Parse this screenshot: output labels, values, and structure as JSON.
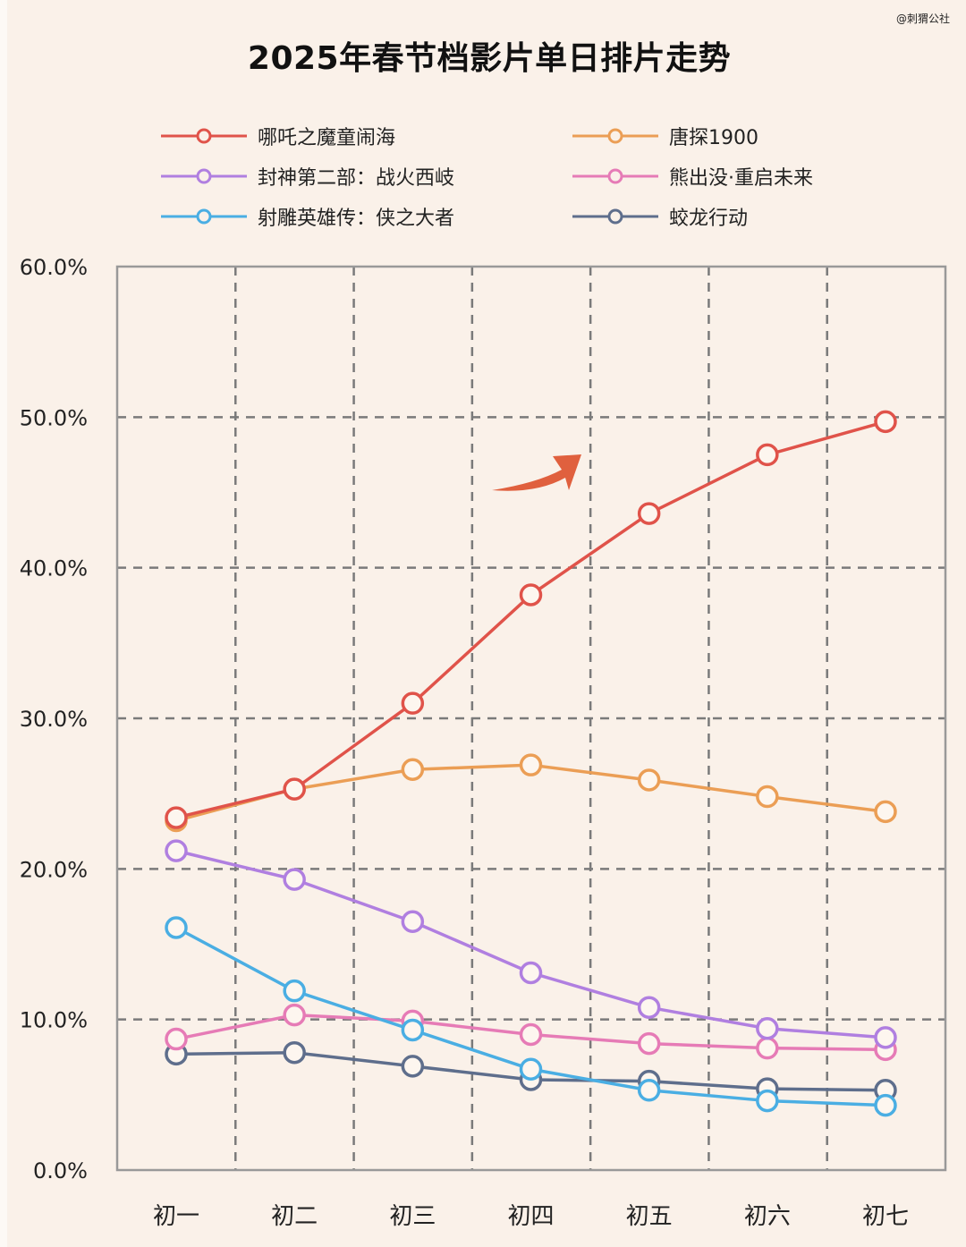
{
  "watermark": "@刺猬公社",
  "chart_data": {
    "type": "line",
    "title": "2025年春节档影片单日排片走势",
    "xlabel": "",
    "ylabel": "",
    "categories": [
      "初一",
      "初二",
      "初三",
      "初四",
      "初五",
      "初六",
      "初七"
    ],
    "ylim": [
      0,
      60
    ],
    "yticks": [
      "0.0%",
      "10.0%",
      "20.0%",
      "30.0%",
      "40.0%",
      "50.0%",
      "60.0%"
    ],
    "grid": true,
    "legend_position": "top",
    "series": [
      {
        "name": "哪吒之魔童闹海",
        "color": "#e0534a",
        "values": [
          23.4,
          25.3,
          31.0,
          38.2,
          43.6,
          47.5,
          49.7
        ]
      },
      {
        "name": "唐探1900",
        "color": "#eb9e55",
        "values": [
          23.2,
          25.3,
          26.6,
          26.9,
          25.9,
          24.8,
          23.8
        ]
      },
      {
        "name": "封神第二部：战火西岐",
        "color": "#b07fe0",
        "values": [
          21.2,
          19.3,
          16.5,
          13.1,
          10.8,
          9.4,
          8.8
        ]
      },
      {
        "name": "熊出没·重启未来",
        "color": "#e67bb6",
        "values": [
          8.7,
          10.3,
          9.9,
          9.0,
          8.4,
          8.1,
          8.0
        ]
      },
      {
        "name": "射雕英雄传：侠之大者",
        "color": "#4aaee3",
        "values": [
          16.1,
          11.9,
          9.3,
          6.7,
          5.3,
          4.6,
          4.3
        ]
      },
      {
        "name": "蛟龙行动",
        "color": "#5e6e8c",
        "values": [
          7.7,
          7.8,
          6.9,
          6.0,
          5.9,
          5.4,
          5.3
        ]
      }
    ],
    "annotations": [
      {
        "type": "arrow",
        "color": "#e0603e",
        "direction": "up-right"
      }
    ]
  }
}
